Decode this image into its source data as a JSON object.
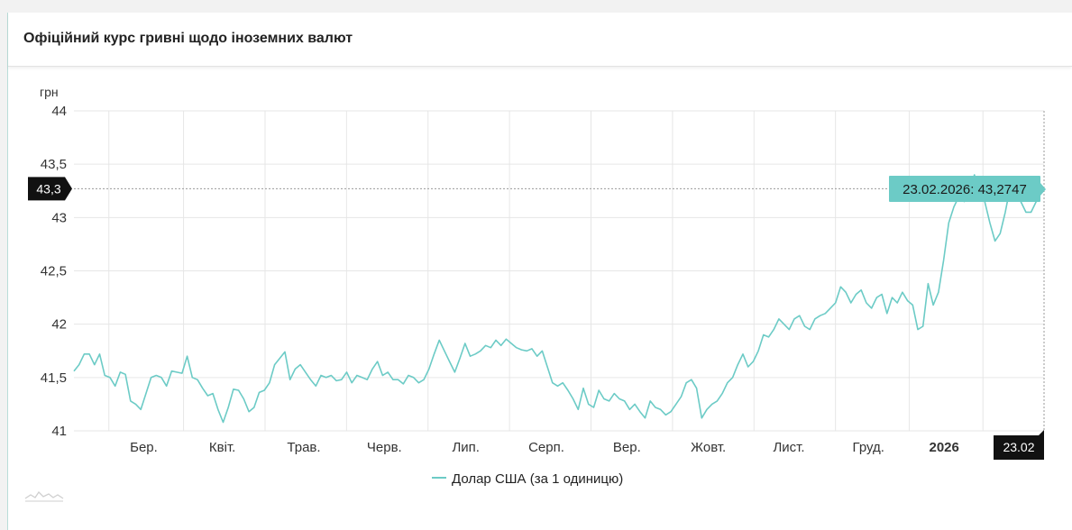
{
  "header": {
    "title": "Офіційний курс гривні щодо іноземних валют"
  },
  "colors": {
    "series": "#6ccbc6",
    "grid": "#e6e6e6",
    "label_bg": "#111111",
    "tooltip_bg": "#6ccbc6"
  },
  "chart_data": {
    "type": "line",
    "title": "Офіційний курс гривні щодо іноземних валют",
    "ylabel": "грн",
    "xlabel": "",
    "ylim": [
      41,
      44
    ],
    "yticks": [
      "41",
      "41,5",
      "42",
      "42,5",
      "43",
      "43,5",
      "44"
    ],
    "ytick_values": [
      41,
      41.5,
      42,
      42.5,
      43,
      43.5,
      44
    ],
    "xticks": [
      "Бер.",
      "Квіт.",
      "Трав.",
      "Черв.",
      "Лип.",
      "Серп.",
      "Вер.",
      "Жовт.",
      "Лист.",
      "Груд.",
      "2026"
    ],
    "xtick_bold": "2026",
    "grid": true,
    "legend_position": "bottom-center",
    "series": [
      {
        "name": "Долар США (за 1 одиницю)",
        "values": [
          41.56,
          41.62,
          41.72,
          41.72,
          41.62,
          41.72,
          41.52,
          41.5,
          41.42,
          41.55,
          41.53,
          41.28,
          41.25,
          41.2,
          41.35,
          41.5,
          41.52,
          41.5,
          41.42,
          41.56,
          41.55,
          41.54,
          41.7,
          41.5,
          41.48,
          41.4,
          41.33,
          41.35,
          41.2,
          41.08,
          41.22,
          41.39,
          41.38,
          41.3,
          41.18,
          41.22,
          41.36,
          41.38,
          41.45,
          41.62,
          41.68,
          41.74,
          41.48,
          41.58,
          41.62,
          41.55,
          41.48,
          41.42,
          41.52,
          41.5,
          41.52,
          41.47,
          41.48,
          41.55,
          41.45,
          41.52,
          41.5,
          41.48,
          41.58,
          41.65,
          41.52,
          41.55,
          41.48,
          41.48,
          41.44,
          41.52,
          41.5,
          41.45,
          41.48,
          41.58,
          41.72,
          41.85,
          41.75,
          41.65,
          41.55,
          41.68,
          41.82,
          41.7,
          41.72,
          41.75,
          41.8,
          41.78,
          41.85,
          41.8,
          41.86,
          41.82,
          41.78,
          41.76,
          41.75,
          41.77,
          41.7,
          41.75,
          41.6,
          41.45,
          41.42,
          41.45,
          41.38,
          41.3,
          41.2,
          41.4,
          41.25,
          41.22,
          41.38,
          41.3,
          41.28,
          41.35,
          41.3,
          41.28,
          41.2,
          41.25,
          41.18,
          41.12,
          41.28,
          41.22,
          41.2,
          41.15,
          41.18,
          41.25,
          41.32,
          41.45,
          41.48,
          41.4,
          41.12,
          41.2,
          41.25,
          41.28,
          41.35,
          41.45,
          41.5,
          41.62,
          41.72,
          41.6,
          41.65,
          41.75,
          41.9,
          41.88,
          41.95,
          42.05,
          42.0,
          41.95,
          42.05,
          42.08,
          41.98,
          41.95,
          42.05,
          42.08,
          42.1,
          42.15,
          42.2,
          42.35,
          42.3,
          42.2,
          42.28,
          42.32,
          42.2,
          42.15,
          42.25,
          42.28,
          42.1,
          42.25,
          42.2,
          42.3,
          42.22,
          42.18,
          41.95,
          41.98,
          42.38,
          42.18,
          42.3,
          42.6,
          42.95,
          43.1,
          43.2,
          43.15,
          43.25,
          43.4,
          43.2,
          43.15,
          42.95,
          42.78,
          42.85,
          43.05,
          43.3,
          43.25,
          43.15,
          43.05,
          43.05,
          43.15,
          43.27
        ]
      }
    ],
    "tooltip": {
      "label": "23.02.2026: 43,2747"
    },
    "crosshair": {
      "y_label": "43,3",
      "x_label": "23.02"
    }
  }
}
